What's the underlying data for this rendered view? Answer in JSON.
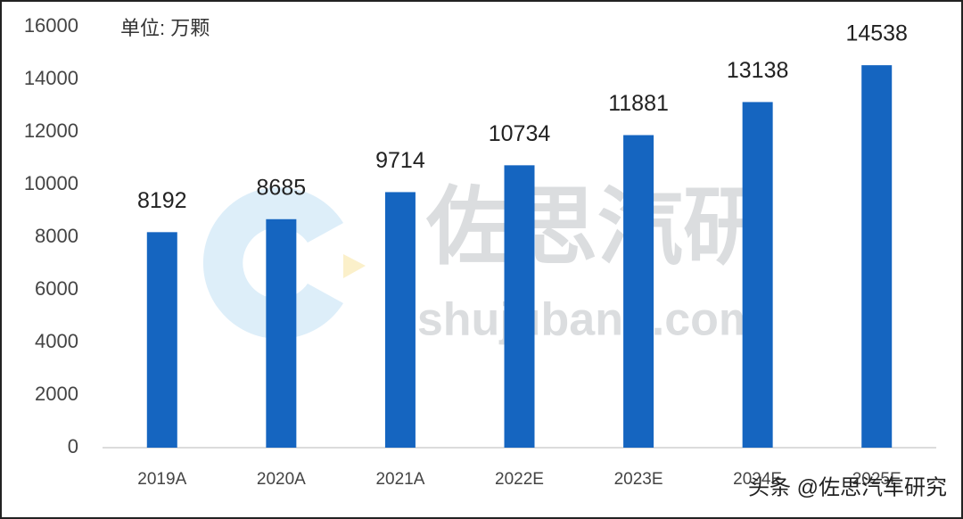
{
  "chart_data": {
    "type": "bar",
    "subtitle": "单位: 万颗",
    "categories": [
      "2019A",
      "2020A",
      "2021A",
      "2022E",
      "2023E",
      "2024E",
      "2025E"
    ],
    "values": [
      8192,
      8685,
      9714,
      10734,
      11881,
      13138,
      14538
    ],
    "color": "#1565c0",
    "ylim": [
      0,
      16000
    ],
    "yticks": [
      0,
      2000,
      4000,
      6000,
      8000,
      10000,
      12000,
      14000,
      16000
    ],
    "grid": false,
    "watermark": [
      "佐思汽研",
      "shujubang.com"
    ],
    "credit": "头条 @佐思汽车研究"
  }
}
